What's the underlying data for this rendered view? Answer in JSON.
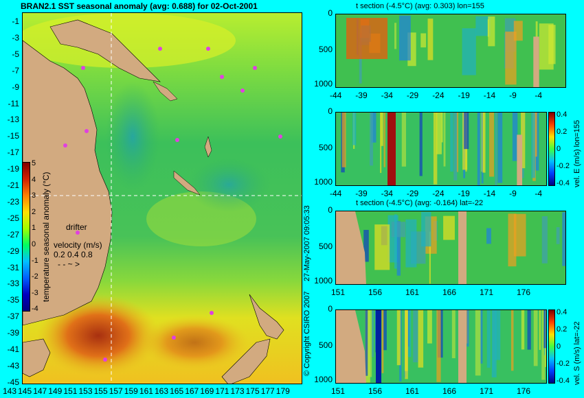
{
  "map": {
    "title": "BRAN2.1 SST seasonal anomaly (avg: 0.688) for 02-Oct-2001",
    "lat_ticks": [
      "-1",
      "-3",
      "-5",
      "-7",
      "-9",
      "-11",
      "-13",
      "-15",
      "-17",
      "-19",
      "-21",
      "-23",
      "-25",
      "-27",
      "-29",
      "-31",
      "-33",
      "-35",
      "-37",
      "-39",
      "-41",
      "-43",
      "-45"
    ],
    "lon_ticks": [
      "143",
      "145",
      "147",
      "149",
      "151",
      "153",
      "155",
      "157",
      "159",
      "161",
      "163",
      "165",
      "167",
      "169",
      "171",
      "173",
      "175",
      "177",
      "179"
    ],
    "colorbar": {
      "ticks": [
        "5",
        "4",
        "3",
        "2",
        "1",
        "0",
        "-1",
        "-2",
        "-3",
        "-4"
      ],
      "label": "temperature seasonal anomaly (°C)"
    },
    "drifter_label": "drifter",
    "velocity_label": "velocity (m/s)",
    "velocity_ticks": "0.2 0.4 0.8",
    "crosshair": {
      "lon": 155,
      "lat": -22
    },
    "colors": {
      "land": "#d2aa80",
      "drifter": "#e040e0",
      "crosshair": "#ffffff"
    }
  },
  "copyright": "© Copyright CSIRO 2007",
  "timestamp": "27-May-2007 09:05:33",
  "panels": [
    {
      "id": "t-lon",
      "title": "t section (-4.5°C) (avg: 0.303) lon=155",
      "x_ticks": [
        "-44",
        "-39",
        "-34",
        "-29",
        "-24",
        "-19",
        "-14",
        "-9",
        "-4"
      ],
      "y_ticks": [
        "0",
        "500",
        "1000"
      ],
      "colorbar": null,
      "side_label": ""
    },
    {
      "id": "v-lon",
      "title": "",
      "x_ticks": [
        "-44",
        "-39",
        "-34",
        "-29",
        "-24",
        "-19",
        "-14",
        "-9",
        "-4"
      ],
      "y_ticks": [
        "0",
        "500",
        "1000"
      ],
      "colorbar": [
        "0.4",
        "0.2",
        "0",
        "-0.2",
        "-0.4"
      ],
      "side_label": "vel. E (m/s) lon=155"
    },
    {
      "id": "t-lat",
      "title": "t section (-4.5°C) (avg: -0.164) lat=-22",
      "x_ticks": [
        "151",
        "156",
        "161",
        "166",
        "171",
        "176"
      ],
      "y_ticks": [
        "0",
        "500",
        "1000"
      ],
      "colorbar": null,
      "side_label": ""
    },
    {
      "id": "v-lat",
      "title": "",
      "x_ticks": [
        "151",
        "156",
        "161",
        "166",
        "171",
        "176"
      ],
      "y_ticks": [
        "0",
        "500",
        "1000"
      ],
      "colorbar": [
        "0.4",
        "0.2",
        "0",
        "-0.2",
        "-0.4"
      ],
      "side_label": "vel. S (m/s) lat=-22"
    }
  ],
  "chart_data": [
    {
      "type": "heatmap",
      "title": "BRAN2.1 SST seasonal anomaly (avg: 0.688) for 02-Oct-2001",
      "xlim": [
        143,
        180
      ],
      "ylim": [
        -45,
        0
      ],
      "colorbar_range": [
        -4,
        5
      ]
    },
    {
      "type": "heatmap",
      "title": "t section (-4.5°C) (avg: 0.303) lon=155",
      "xlim": [
        -45,
        0
      ],
      "ylim": [
        1050,
        0
      ]
    },
    {
      "type": "heatmap",
      "title": "",
      "xlim": [
        -45,
        0
      ],
      "ylim": [
        1050,
        0
      ],
      "colorbar_range": [
        -0.4,
        0.4
      ]
    },
    {
      "type": "heatmap",
      "title": "t section (-4.5°C) (avg: -0.164) lat=-22",
      "xlim": [
        150,
        180
      ],
      "ylim": [
        1050,
        0
      ]
    },
    {
      "type": "heatmap",
      "title": "",
      "xlim": [
        150,
        180
      ],
      "ylim": [
        1050,
        0
      ],
      "colorbar_range": [
        -0.4,
        0.4
      ]
    }
  ]
}
